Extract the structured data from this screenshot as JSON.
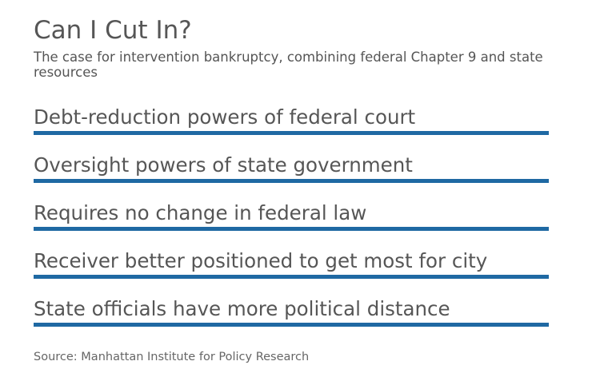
{
  "header": {
    "title": "Can I Cut In?",
    "subtitle": "The case for intervention bankruptcy, combining federal Chapter 9 and state resources"
  },
  "items": [
    {
      "label": "Debt-reduction powers of federal court"
    },
    {
      "label": "Oversight powers of state government"
    },
    {
      "label": "Requires no change in federal law"
    },
    {
      "label": "Receiver better positioned to get most for city"
    },
    {
      "label": "State officials have more political distance"
    }
  ],
  "footer": {
    "source": "Source: Manhattan Institute for Policy Research"
  },
  "colors": {
    "rule": "#1f69a3",
    "text": "#565656"
  }
}
